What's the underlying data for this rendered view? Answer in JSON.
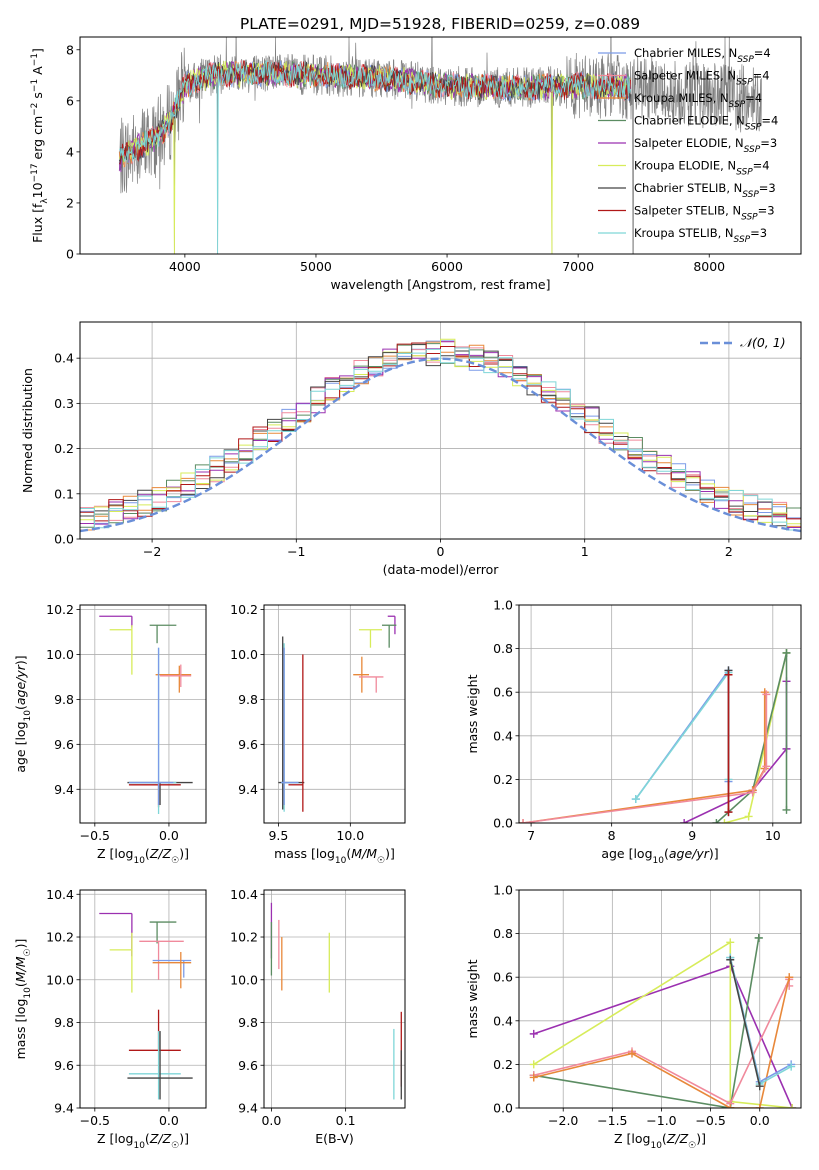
{
  "title": "PLATE=0291, MJD=51928, FIBERID=0259, z=0.089",
  "colors": {
    "Chabrier MILES": "#7b9be8",
    "Salpeter MILES": "#f08a9c",
    "Kroupa MILES": "#e8883a",
    "Chabrier ELODIE": "#5b8c62",
    "Salpeter ELODIE": "#9b30b0",
    "Kroupa ELODIE": "#d7ec5a",
    "Chabrier STELIB": "#444444",
    "Salpeter STELIB": "#b01818",
    "Kroupa STELIB": "#7fd6d8",
    "data": "#808080",
    "gaussian": "#6a8fd8"
  },
  "chart_data": [
    {
      "id": "spectrum",
      "type": "line",
      "xlabel": "wavelength [Angstrom, rest frame]",
      "ylabel": "Flux [f_λ10^-17 erg cm^-2 s^-1 A^-1]",
      "xlim": [
        3200,
        8700
      ],
      "ylim": [
        0,
        8.5
      ],
      "xticks": [
        4000,
        5000,
        6000,
        7000,
        8000
      ],
      "yticks": [
        0,
        2,
        4,
        6,
        8
      ],
      "legend_position": "upper-right",
      "legend": [
        {
          "name": "Chabrier MILES",
          "nssp": "4"
        },
        {
          "name": "Salpeter MILES",
          "nssp": "4"
        },
        {
          "name": "Kroupa MILES",
          "nssp": "4"
        },
        {
          "name": "Chabrier ELODIE",
          "nssp": "4"
        },
        {
          "name": "Salpeter ELODIE",
          "nssp": "3"
        },
        {
          "name": "Kroupa ELODIE",
          "nssp": "4"
        },
        {
          "name": "Chabrier STELIB",
          "nssp": "3"
        },
        {
          "name": "Salpeter STELIB",
          "nssp": "3"
        },
        {
          "name": "Kroupa STELIB",
          "nssp": "3"
        }
      ],
      "continuum": [
        [
          3500,
          3.7
        ],
        [
          3650,
          4.2
        ],
        [
          3800,
          4.6
        ],
        [
          3900,
          5.3
        ],
        [
          4000,
          6.6
        ],
        [
          4200,
          7.0
        ],
        [
          4500,
          7.1
        ],
        [
          5000,
          7.0
        ],
        [
          5500,
          6.9
        ],
        [
          6000,
          6.6
        ],
        [
          6500,
          6.5
        ],
        [
          7000,
          6.6
        ],
        [
          7500,
          6.5
        ],
        [
          8000,
          6.2
        ],
        [
          8400,
          6.1
        ]
      ],
      "model_xrange": [
        3500,
        7400
      ],
      "dropouts": [
        3920,
        4250,
        6800,
        7420
      ]
    },
    {
      "id": "residuals",
      "type": "line",
      "xlabel": "(data-model)/error",
      "ylabel": "Normed distribution",
      "xlim": [
        -2.5,
        2.5
      ],
      "ylim": [
        0,
        0.48
      ],
      "xticks": [
        -2,
        -1,
        0,
        1,
        2
      ],
      "yticks": [
        0.0,
        0.1,
        0.2,
        0.3,
        0.4
      ],
      "legend_position": "upper-right",
      "gaussian_label": "𝒩(0, 1)"
    },
    {
      "id": "age-vs-Z",
      "type": "scatter",
      "xlabel": "Z [log10(Z/Z☉)]",
      "ylabel": "age  [log10(age/yr)]",
      "xlim": [
        -0.6,
        0.25
      ],
      "ylim": [
        9.25,
        10.22
      ],
      "xticks": [
        -0.5,
        0.0
      ],
      "yticks": [
        9.4,
        9.6,
        9.8,
        10.0,
        10.2
      ],
      "points": [
        {
          "model": "Salpeter ELODIE",
          "x": -0.25,
          "y": 10.17,
          "xerr": [
            0.22,
            0.0
          ],
          "yerr": [
            0.05,
            0.0
          ]
        },
        {
          "model": "Chabrier ELODIE",
          "x": -0.08,
          "y": 10.13,
          "xerr": [
            0.05,
            0.13
          ],
          "yerr": [
            0.08,
            0.0
          ]
        },
        {
          "model": "Kroupa ELODIE",
          "x": -0.25,
          "y": 10.11,
          "xerr": [
            0.15,
            0.0
          ],
          "yerr": [
            0.2,
            0.02
          ]
        },
        {
          "model": "Kroupa MILES",
          "x": 0.07,
          "y": 9.91,
          "xerr": [
            0.16,
            0.08
          ],
          "yerr": [
            0.08,
            0.04
          ]
        },
        {
          "model": "Salpeter MILES",
          "x": 0.08,
          "y": 9.905,
          "xerr": [
            0.14,
            0.07
          ],
          "yerr": [
            0.05,
            0.05
          ]
        },
        {
          "model": "Chabrier STELIB",
          "x": -0.06,
          "y": 9.43,
          "xerr": [
            0.22,
            0.22
          ],
          "yerr": [
            0.1,
            0.0
          ]
        },
        {
          "model": "Salpeter STELIB",
          "x": -0.07,
          "y": 9.42,
          "xerr": [
            0.2,
            0.15
          ],
          "yerr": [
            0.1,
            0.0
          ]
        },
        {
          "model": "Kroupa STELIB",
          "x": -0.07,
          "y": 9.43,
          "xerr": [
            0.2,
            0.12
          ],
          "yerr": [
            0.14,
            0.6
          ]
        },
        {
          "model": "Chabrier MILES",
          "x": -0.07,
          "y": 9.43,
          "xerr": [
            0.2,
            0.1
          ],
          "yerr": [
            0.1,
            0.6
          ]
        }
      ]
    },
    {
      "id": "age-vs-mass",
      "type": "scatter",
      "xlabel": "mass [log10(M/M☉)]",
      "ylabel": "",
      "xlim": [
        9.4,
        10.38
      ],
      "ylim": [
        9.25,
        10.22
      ],
      "xticks": [
        9.5,
        10.0
      ],
      "yticks": [
        9.4,
        9.6,
        9.8,
        10.0,
        10.2
      ],
      "points": [
        {
          "model": "Salpeter ELODIE",
          "x": 10.31,
          "y": 10.17,
          "xerr": [
            0.05,
            0.0
          ],
          "yerr": [
            0.08,
            0.0
          ]
        },
        {
          "model": "Chabrier ELODIE",
          "x": 10.27,
          "y": 10.13,
          "xerr": [
            0.05,
            0.05
          ],
          "yerr": [
            0.1,
            0.0
          ]
        },
        {
          "model": "Kroupa ELODIE",
          "x": 10.14,
          "y": 10.11,
          "xerr": [
            0.08,
            0.08
          ],
          "yerr": [
            0.08,
            0.0
          ]
        },
        {
          "model": "Kroupa MILES",
          "x": 10.08,
          "y": 9.91,
          "xerr": [
            0.06,
            0.05
          ],
          "yerr": [
            0.08,
            0.08
          ]
        },
        {
          "model": "Salpeter MILES",
          "x": 10.18,
          "y": 9.9,
          "xerr": [
            0.12,
            0.05
          ],
          "yerr": [
            0.07,
            0.0
          ]
        },
        {
          "model": "Chabrier STELIB",
          "x": 9.53,
          "y": 9.43,
          "xerr": [
            0.03,
            0.15
          ],
          "yerr": [
            0.12,
            0.65
          ]
        },
        {
          "model": "Salpeter STELIB",
          "x": 9.67,
          "y": 9.42,
          "xerr": [
            0.1,
            0.0
          ],
          "yerr": [
            0.12,
            0.58
          ]
        },
        {
          "model": "Kroupa STELIB",
          "x": 9.54,
          "y": 9.43,
          "xerr": [
            0.02,
            0.1
          ],
          "yerr": [
            0.13,
            0.62
          ]
        },
        {
          "model": "Chabrier MILES",
          "x": 9.54,
          "y": 9.43,
          "xerr": [
            0.02,
            0.1
          ],
          "yerr": [
            0.1,
            0.6
          ]
        }
      ]
    },
    {
      "id": "weight-vs-age",
      "type": "line",
      "xlabel": "age  [log10(age/yr)]",
      "ylabel": "mass weight",
      "xlim": [
        6.85,
        10.35
      ],
      "ylim": [
        0,
        1
      ],
      "xticks": [
        7,
        8,
        9,
        10
      ],
      "yticks": [
        0.0,
        0.2,
        0.4,
        0.6,
        0.8,
        1.0
      ],
      "series": [
        {
          "model": "Chabrier MILES",
          "x": [
            8.3,
            9.45,
            9.45
          ],
          "y": [
            0.11,
            0.7,
            0.19
          ]
        },
        {
          "model": "Kroupa STELIB",
          "x": [
            8.3,
            9.45,
            9.45
          ],
          "y": [
            0.11,
            0.69,
            0.2
          ]
        },
        {
          "model": "Kroupa ELODIE",
          "x": [
            9.4,
            9.7,
            10.17
          ],
          "y": [
            0.0,
            0.03,
            0.78
          ]
        },
        {
          "model": "Chabrier ELODIE",
          "x": [
            9.3,
            9.75,
            10.17
          ],
          "y": [
            0.0,
            0.15,
            0.78
          ]
        },
        {
          "model": "Salpeter ELODIE",
          "x": [
            8.9,
            9.75,
            10.17,
            10.17
          ],
          "y": [
            0.0,
            0.15,
            0.34,
            0.65
          ]
        },
        {
          "model": "Kroupa MILES",
          "x": [
            6.9,
            9.75,
            9.9,
            9.9
          ],
          "y": [
            0.0,
            0.15,
            0.25,
            0.6
          ]
        },
        {
          "model": "Salpeter MILES",
          "x": [
            6.9,
            9.75,
            9.92,
            9.92
          ],
          "y": [
            0.0,
            0.14,
            0.26,
            0.59
          ]
        },
        {
          "model": "Chabrier STELIB",
          "x": [
            9.45,
            9.45
          ],
          "y": [
            0.05,
            0.7
          ]
        },
        {
          "model": "Salpeter STELIB",
          "x": [
            9.45,
            9.45
          ],
          "y": [
            0.05,
            0.68
          ]
        },
        {
          "model": "Chabrier ELODIE",
          "x": [
            10.17,
            10.17
          ],
          "y": [
            0.06,
            0.78
          ]
        }
      ]
    },
    {
      "id": "mass-vs-Z",
      "type": "scatter",
      "xlabel": "Z [log10(Z/Z☉)]",
      "ylabel": "mass [log10(M/M☉)]",
      "xlim": [
        -0.6,
        0.25
      ],
      "ylim": [
        9.4,
        10.42
      ],
      "xticks": [
        -0.5,
        0.0
      ],
      "yticks": [
        9.4,
        9.6,
        9.8,
        10.0,
        10.2,
        10.4
      ],
      "points": [
        {
          "model": "Salpeter ELODIE",
          "x": -0.25,
          "y": 10.31,
          "xerr": [
            0.22,
            0.0
          ],
          "yerr": [
            0.2,
            0.0
          ]
        },
        {
          "model": "Chabrier ELODIE",
          "x": -0.08,
          "y": 10.27,
          "xerr": [
            0.05,
            0.13
          ],
          "yerr": [
            0.1,
            0.0
          ]
        },
        {
          "model": "Kroupa ELODIE",
          "x": -0.25,
          "y": 10.14,
          "xerr": [
            0.15,
            0.0
          ],
          "yerr": [
            0.2,
            0.08
          ]
        },
        {
          "model": "Salpeter MILES",
          "x": -0.07,
          "y": 10.18,
          "xerr": [
            0.13,
            0.17
          ],
          "yerr": [
            0.18,
            0.0
          ]
        },
        {
          "model": "Chabrier MILES",
          "x": 0.1,
          "y": 10.09,
          "xerr": [
            0.21,
            0.05
          ],
          "yerr": [
            0.08,
            0.0
          ]
        },
        {
          "model": "Kroupa MILES",
          "x": 0.08,
          "y": 10.08,
          "xerr": [
            0.19,
            0.07
          ],
          "yerr": [
            0.12,
            0.05
          ]
        },
        {
          "model": "Salpeter STELIB",
          "x": -0.07,
          "y": 9.67,
          "xerr": [
            0.2,
            0.15
          ],
          "yerr": [
            0.0,
            0.19
          ]
        },
        {
          "model": "Kroupa STELIB",
          "x": -0.07,
          "y": 9.56,
          "xerr": [
            0.2,
            0.15
          ],
          "yerr": [
            0.12,
            0.2
          ]
        },
        {
          "model": "Chabrier STELIB",
          "x": -0.06,
          "y": 9.54,
          "xerr": [
            0.22,
            0.22
          ],
          "yerr": [
            0.1,
            0.22
          ]
        }
      ]
    },
    {
      "id": "mass-vs-EBV",
      "type": "scatter",
      "xlabel": "E(B-V)",
      "ylabel": "",
      "xlim": [
        -0.01,
        0.18
      ],
      "ylim": [
        9.4,
        10.42
      ],
      "xticks": [
        0.0,
        0.1
      ],
      "yticks": [
        9.4,
        9.6,
        9.8,
        10.0,
        10.2,
        10.4
      ],
      "vlines": [
        {
          "model": "Salpeter ELODIE",
          "x": 0.0,
          "y": [
            10.1,
            10.36
          ]
        },
        {
          "model": "Chabrier ELODIE",
          "x": 0.0,
          "y": [
            10.02,
            10.27
          ]
        },
        {
          "model": "Salpeter MILES",
          "x": 0.01,
          "y": [
            10.05,
            10.28
          ]
        },
        {
          "model": "Kroupa MILES",
          "x": 0.014,
          "y": [
            9.95,
            10.2
          ]
        },
        {
          "model": "Kroupa ELODIE",
          "x": 0.078,
          "y": [
            9.94,
            10.22
          ]
        },
        {
          "model": "Kroupa STELIB",
          "x": 0.165,
          "y": [
            9.44,
            9.77
          ]
        },
        {
          "model": "Salpeter STELIB",
          "x": 0.175,
          "y": [
            9.5,
            9.85
          ]
        },
        {
          "model": "Chabrier STELIB",
          "x": 0.175,
          "y": [
            9.44,
            9.67
          ]
        }
      ]
    },
    {
      "id": "weight-vs-Z",
      "type": "line",
      "xlabel": "Z [log10(Z/Z☉)]",
      "ylabel": "mass weight",
      "xlim": [
        -2.45,
        0.42
      ],
      "ylim": [
        0,
        1
      ],
      "xticks": [
        -2.0,
        -1.5,
        -1.0,
        -0.5,
        0.0
      ],
      "yticks": [
        0.0,
        0.2,
        0.4,
        0.6,
        0.8,
        1.0
      ],
      "series": [
        {
          "model": "Salpeter ELODIE",
          "x": [
            -2.3,
            -0.3,
            0.33
          ],
          "y": [
            0.34,
            0.65,
            0.0
          ]
        },
        {
          "model": "Kroupa ELODIE",
          "x": [
            -2.3,
            -0.3,
            -0.3,
            0.33
          ],
          "y": [
            0.2,
            0.76,
            0.03,
            0.0
          ]
        },
        {
          "model": "Chabrier ELODIE",
          "x": [
            -2.3,
            -0.3,
            -0.3,
            -0.01,
            -0.01
          ],
          "y": [
            0.15,
            0.0,
            0.0,
            0.78,
            0.78
          ]
        },
        {
          "model": "Salpeter MILES",
          "x": [
            -2.3,
            -1.3,
            -0.3,
            0.3,
            0.3
          ],
          "y": [
            0.15,
            0.26,
            0.02,
            0.59,
            0.56
          ]
        },
        {
          "model": "Kroupa MILES",
          "x": [
            -2.3,
            -1.3,
            -0.3,
            0.0,
            0.3,
            0.3
          ],
          "y": [
            0.14,
            0.25,
            0.0,
            0.0,
            0.6,
            0.6
          ]
        },
        {
          "model": "Chabrier MILES",
          "x": [
            -0.3,
            0.0,
            0.32
          ],
          "y": [
            0.69,
            0.12,
            0.2
          ]
        },
        {
          "model": "Kroupa STELIB",
          "x": [
            -0.3,
            0.0,
            0.32
          ],
          "y": [
            0.69,
            0.11,
            0.19
          ]
        },
        {
          "model": "Chabrier STELIB",
          "x": [
            -0.3,
            0.0
          ],
          "y": [
            0.68,
            0.1
          ]
        }
      ]
    }
  ]
}
